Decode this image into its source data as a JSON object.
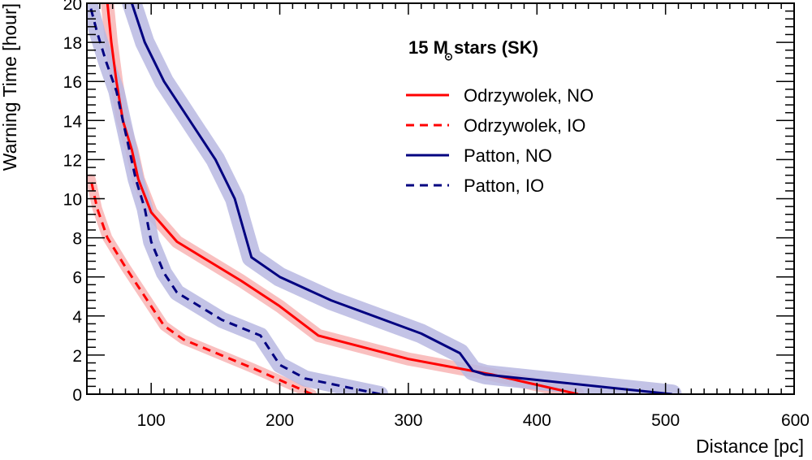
{
  "chart_data": {
    "type": "line",
    "title": "",
    "xlabel": "Distance [pc]",
    "ylabel": "Warning Time [hour]",
    "xlim": [
      50,
      600
    ],
    "ylim": [
      0,
      20
    ],
    "x_ticks": [
      100,
      200,
      300,
      400,
      500,
      600
    ],
    "y_ticks": [
      0,
      2,
      4,
      6,
      8,
      10,
      12,
      14,
      16,
      18,
      20
    ],
    "legend": {
      "title_prefix": "15 M",
      "title_symbol": "⊙",
      "title_suffix": " stars (SK)",
      "placement": "top-right"
    },
    "colors": {
      "red": "#ff0000",
      "red_band": "#f8b4b4",
      "blue": "#000080",
      "blue_band": "#b8b8e2"
    },
    "series": [
      {
        "name": "Odrzywolek, NO",
        "color": "#ff0000",
        "band_color": "#f8b4b4",
        "style": "solid",
        "band_half_width": 8,
        "points": [
          [
            432,
            0
          ],
          [
            365,
            1
          ],
          [
            300,
            1.8
          ],
          [
            230,
            3
          ],
          [
            200,
            4.5
          ],
          [
            170,
            5.8
          ],
          [
            120,
            7.8
          ],
          [
            100,
            9.3
          ],
          [
            90,
            11
          ],
          [
            85,
            12.5
          ],
          [
            78,
            14
          ],
          [
            73,
            16
          ],
          [
            69,
            18
          ],
          [
            66,
            20
          ]
        ]
      },
      {
        "name": "Odrzywolek, IO",
        "color": "#ff0000",
        "band_color": "#f8b4b4",
        "style": "dashed",
        "band_half_width": 6,
        "points": [
          [
            225,
            0
          ],
          [
            180,
            1.3
          ],
          [
            125,
            2.8
          ],
          [
            110,
            3.5
          ],
          [
            95,
            5
          ],
          [
            80,
            6.5
          ],
          [
            66,
            8
          ],
          [
            58,
            9.5
          ],
          [
            53,
            11
          ]
        ]
      },
      {
        "name": "Patton, NO",
        "color": "#000080",
        "band_color": "#b8b8e2",
        "style": "solid",
        "band_half_width": 12,
        "points": [
          [
            505,
            0
          ],
          [
            360,
            1
          ],
          [
            350,
            1.2
          ],
          [
            340,
            2.1
          ],
          [
            310,
            3.1
          ],
          [
            240,
            4.8
          ],
          [
            200,
            6
          ],
          [
            178,
            7
          ],
          [
            165,
            10
          ],
          [
            150,
            12
          ],
          [
            130,
            14
          ],
          [
            110,
            16
          ],
          [
            95,
            18
          ],
          [
            85,
            20
          ]
        ]
      },
      {
        "name": "Patton, IO",
        "color": "#000080",
        "band_color": "#b8b8e2",
        "style": "dashed",
        "band_half_width": 10,
        "points": [
          [
            278,
            0
          ],
          [
            220,
            0.8
          ],
          [
            200,
            1.5
          ],
          [
            185,
            3
          ],
          [
            155,
            3.8
          ],
          [
            120,
            5.2
          ],
          [
            110,
            6.2
          ],
          [
            100,
            7.8
          ],
          [
            95,
            9.5
          ],
          [
            88,
            11
          ],
          [
            82,
            12.8
          ],
          [
            78,
            14
          ],
          [
            73,
            15.5
          ],
          [
            65,
            17
          ],
          [
            58,
            18.5
          ],
          [
            52,
            20
          ]
        ]
      }
    ]
  }
}
